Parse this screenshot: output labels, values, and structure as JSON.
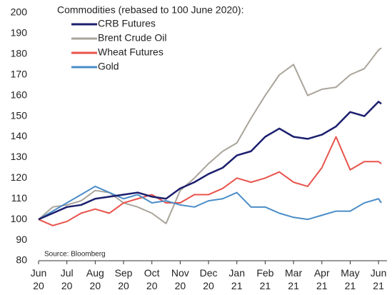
{
  "chart_data": {
    "type": "line",
    "legend_title": "Commodities (rebased to 100 June 2020):",
    "source": "Source: Bloomberg",
    "x": [
      0,
      0.5,
      1,
      1.5,
      2,
      2.5,
      3,
      3.5,
      4,
      4.5,
      5,
      5.5,
      6,
      6.5,
      7,
      7.5,
      8,
      8.5,
      9,
      9.5,
      10,
      10.5,
      11,
      11.5,
      12,
      12.1
    ],
    "series": [
      {
        "name": "CRB Futures",
        "color": "#1b1f6e",
        "values": [
          100,
          103,
          106,
          107,
          110,
          111,
          112,
          113,
          111,
          110,
          115,
          118,
          122,
          125,
          131,
          133,
          140,
          144,
          140,
          139,
          141,
          145,
          152,
          150,
          157,
          156
        ]
      },
      {
        "name": "Brent Crude Oil",
        "color": "#aaa49b",
        "values": [
          100,
          106,
          107,
          109,
          114,
          113,
          108,
          106,
          103,
          98,
          114,
          120,
          127,
          133,
          137,
          149,
          160,
          170,
          175,
          160,
          163,
          164,
          170,
          173,
          182,
          183
        ]
      },
      {
        "name": "Wheat Futures",
        "color": "#e8534b",
        "values": [
          100,
          97,
          99,
          103,
          105,
          103,
          108,
          110,
          112,
          108,
          108,
          112,
          112,
          115,
          120,
          118,
          120,
          123,
          118,
          116,
          125,
          140,
          124,
          128,
          128,
          127
        ]
      },
      {
        "name": "Gold",
        "color": "#4b8dc8",
        "values": [
          100,
          104,
          108,
          112,
          116,
          113,
          110,
          112,
          108,
          109,
          107,
          106,
          109,
          110,
          113,
          106,
          106,
          103,
          101,
          100,
          102,
          104,
          104,
          108,
          110,
          108
        ]
      }
    ],
    "xlim": [
      0,
      12.3
    ],
    "xticks": [
      {
        "value": 0,
        "label": "Jun 20"
      },
      {
        "value": 1,
        "label": "Jul 20"
      },
      {
        "value": 2,
        "label": "Aug 20"
      },
      {
        "value": 3,
        "label": "Sep 20"
      },
      {
        "value": 4,
        "label": "Oct 20"
      },
      {
        "value": 5,
        "label": "Nov 20"
      },
      {
        "value": 6,
        "label": "Dec 20"
      },
      {
        "value": 7,
        "label": "Jan 21"
      },
      {
        "value": 8,
        "label": "Feb 21"
      },
      {
        "value": 9,
        "label": "Mar 21"
      },
      {
        "value": 10,
        "label": "Apr 21"
      },
      {
        "value": 11,
        "label": "May 21"
      },
      {
        "value": 12,
        "label": "Jun 21"
      }
    ],
    "ylim": [
      80,
      200
    ],
    "yticks": [
      80,
      90,
      100,
      110,
      120,
      130,
      140,
      150,
      160,
      170,
      180,
      190,
      200
    ],
    "grid": false
  }
}
